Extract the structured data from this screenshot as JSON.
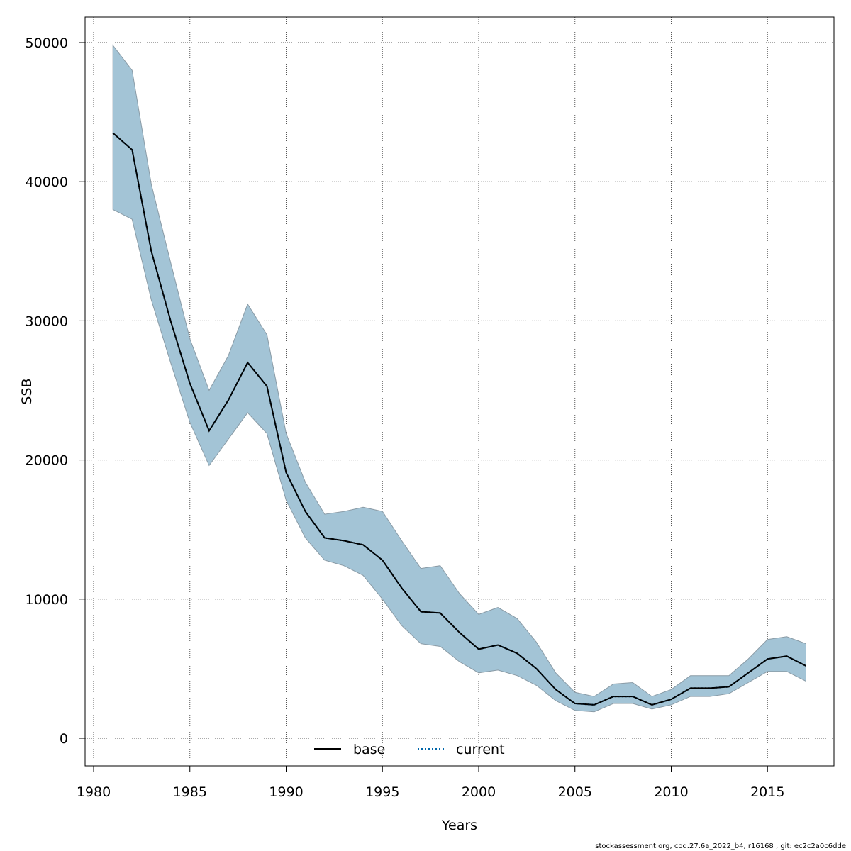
{
  "chart_data": {
    "type": "line",
    "xlabel": "Years",
    "ylabel": "SSB",
    "xlim": [
      1980,
      2017
    ],
    "ylim": [
      0,
      50000
    ],
    "x_ticks": [
      "1980",
      "1985",
      "1990",
      "1995",
      "2000",
      "2005",
      "2010",
      "2015"
    ],
    "y_ticks": [
      "0",
      "10000",
      "20000",
      "30000",
      "40000",
      "50000"
    ],
    "grid": true,
    "legend_position": "bottom-center",
    "x": [
      1981,
      1982,
      1983,
      1984,
      1985,
      1986,
      1987,
      1988,
      1989,
      1990,
      1991,
      1992,
      1993,
      1994,
      1995,
      1996,
      1997,
      1998,
      1999,
      2000,
      2001,
      2002,
      2003,
      2004,
      2005,
      2006,
      2007,
      2008,
      2009,
      2010,
      2011,
      2012,
      2013,
      2014,
      2015,
      2016,
      2017
    ],
    "series": [
      {
        "name": "base",
        "style": "solid",
        "color": "#000000",
        "values": [
          43500,
          42300,
          35000,
          30000,
          25500,
          22100,
          24300,
          27000,
          25300,
          19100,
          16300,
          14400,
          14200,
          13900,
          12800,
          10800,
          9100,
          9000,
          7600,
          6400,
          6700,
          6100,
          5000,
          3500,
          2500,
          2400,
          3000,
          3000,
          2400,
          2800,
          3600,
          3600,
          3700,
          4700,
          5700,
          5900,
          5200
        ]
      },
      {
        "name": "current",
        "style": "dotted",
        "color": "#0066aa",
        "values": [
          43500,
          42300,
          35000,
          30000,
          25500,
          22100,
          24300,
          27000,
          25300,
          19100,
          16300,
          14400,
          14200,
          13900,
          12800,
          10800,
          9100,
          9000,
          7600,
          6400,
          6700,
          6100,
          5000,
          3500,
          2500,
          2400,
          3000,
          3000,
          2400,
          2800,
          3600,
          3600,
          3700,
          4700,
          5700,
          5900,
          5200
        ]
      }
    ],
    "confidence_band": {
      "color": "#a3c4d6",
      "lower": [
        38000,
        37300,
        31500,
        27000,
        22700,
        19600,
        21500,
        23400,
        21900,
        17100,
        14400,
        12800,
        12400,
        11700,
        10000,
        8100,
        6800,
        6600,
        5500,
        4700,
        4900,
        4500,
        3800,
        2700,
        2000,
        1900,
        2500,
        2500,
        2100,
        2400,
        3000,
        3000,
        3200,
        4000,
        4800,
        4800,
        4100
      ],
      "upper": [
        49800,
        48000,
        39800,
        34200,
        28700,
        25000,
        27500,
        31200,
        29000,
        21900,
        18400,
        16100,
        16300,
        16600,
        16300,
        14200,
        12200,
        12400,
        10400,
        8900,
        9400,
        8600,
        6900,
        4700,
        3300,
        3000,
        3900,
        4000,
        3000,
        3500,
        4500,
        4500,
        4500,
        5700,
        7100,
        7300,
        6800
      ]
    }
  },
  "footer": "stockassessment.org, cod.27.6a_2022_b4, r16168 , git: ec2c2a0c6dde"
}
